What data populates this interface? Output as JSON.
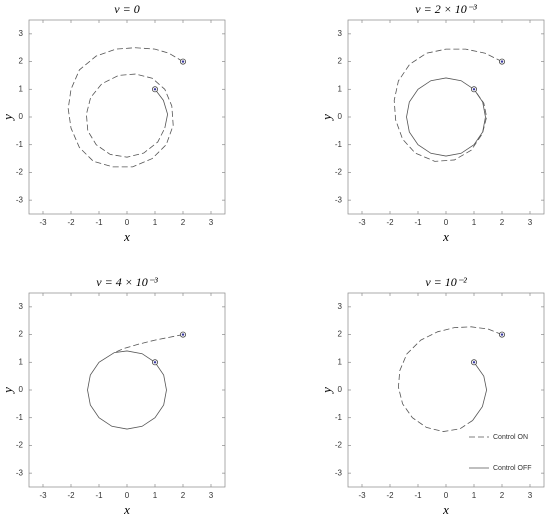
{
  "chart_data": [
    {
      "type": "line",
      "title": "ν = 0",
      "x_label": "x",
      "y_label": "y",
      "xlim": [
        -3.5,
        3.5
      ],
      "ylim": [
        -3.5,
        3.5
      ],
      "xticks": [
        -3,
        -2,
        -1,
        0,
        1,
        2,
        3
      ],
      "yticks": [
        -3,
        -2,
        -1,
        0,
        1,
        2,
        3
      ],
      "series": [
        {
          "name": "Control ON",
          "color": "#555555",
          "style": "dashed",
          "x": [
            2,
            1.5,
            1,
            0.3,
            -0.4,
            -1.1,
            -1.7,
            -2,
            -2.1,
            -2,
            -1.7,
            -1.2,
            -0.5,
            0.2,
            0.9,
            1.4,
            1.65,
            1.6,
            1.35,
            0.9,
            0.3,
            -0.3,
            -0.9,
            -1.3,
            -1.45,
            -1.4,
            -1.1,
            -0.6,
            0,
            0.6,
            1.1,
            1.35
          ],
          "values": [
            2,
            2.3,
            2.45,
            2.5,
            2.45,
            2.2,
            1.7,
            1,
            0.3,
            -0.4,
            -1.1,
            -1.6,
            -1.8,
            -1.8,
            -1.5,
            -1,
            -0.3,
            0.4,
            1,
            1.4,
            1.55,
            1.5,
            1.2,
            0.7,
            0.1,
            -0.5,
            -1,
            -1.35,
            -1.45,
            -1.3,
            -0.9,
            -0.4
          ]
        },
        {
          "name": "Control OFF",
          "color": "#555555",
          "style": "solid",
          "x": [
            1.35,
            1.45,
            1.3,
            1
          ],
          "values": [
            -0.4,
            0.1,
            0.6,
            1
          ]
        }
      ],
      "markers": {
        "x": [
          2,
          1
        ],
        "values": [
          2,
          1
        ],
        "color": "#3a3aa0"
      }
    },
    {
      "type": "line",
      "title": "ν = 2 × 10⁻³",
      "x_label": "x",
      "y_label": "y",
      "xlim": [
        -3.5,
        3.5
      ],
      "ylim": [
        -3.5,
        3.5
      ],
      "xticks": [
        -3,
        -2,
        -1,
        0,
        1,
        2,
        3
      ],
      "yticks": [
        -3,
        -2,
        -1,
        0,
        1,
        2,
        3
      ],
      "series": [
        {
          "name": "Control ON",
          "color": "#555555",
          "style": "dashed",
          "x": [
            2,
            1.4,
            0.7,
            0,
            -0.7,
            -1.3,
            -1.7,
            -1.85,
            -1.8,
            -1.55,
            -1.1,
            -0.4,
            0.3,
            0.9,
            1.3,
            1.45,
            1.35,
            1
          ],
          "values": [
            2,
            2.3,
            2.45,
            2.45,
            2.3,
            1.9,
            1.3,
            0.6,
            -0.1,
            -0.8,
            -1.3,
            -1.6,
            -1.55,
            -1.2,
            -0.6,
            0,
            0.5,
            1
          ]
        },
        {
          "name": "Control OFF",
          "color": "#555555",
          "style": "solid",
          "x": [
            1,
            0.54,
            0,
            -0.54,
            -1,
            -1.31,
            -1.41,
            -1.31,
            -1,
            -0.54,
            0,
            0.54,
            1,
            1.31,
            1.41,
            1.31,
            1
          ],
          "values": [
            1,
            1.31,
            1.41,
            1.31,
            1,
            0.54,
            0,
            -0.54,
            -1,
            -1.31,
            -1.41,
            -1.31,
            -1,
            -0.54,
            0,
            0.54,
            1
          ]
        }
      ],
      "markers": {
        "x": [
          2,
          1
        ],
        "values": [
          2,
          1
        ],
        "color": "#3a3aa0"
      }
    },
    {
      "type": "line",
      "title": "ν = 4 × 10⁻³",
      "x_label": "x",
      "y_label": "y",
      "xlim": [
        -3.5,
        3.5
      ],
      "ylim": [
        -3.5,
        3.5
      ],
      "xticks": [
        -3,
        -2,
        -1,
        0,
        1,
        2,
        3
      ],
      "yticks": [
        -3,
        -2,
        -1,
        0,
        1,
        2,
        3
      ],
      "series": [
        {
          "name": "Control ON",
          "color": "#555555",
          "style": "dashed",
          "x": [
            2,
            1.5,
            1,
            0.4,
            -0.1,
            -0.45
          ],
          "values": [
            2,
            1.9,
            1.8,
            1.65,
            1.5,
            1.35
          ]
        },
        {
          "name": "Control OFF",
          "color": "#555555",
          "style": "solid",
          "x": [
            -0.45,
            -1,
            -1.31,
            -1.41,
            -1.31,
            -1,
            -0.54,
            0,
            0.54,
            1,
            1.31,
            1.41,
            1.31,
            1,
            0.54,
            0,
            -0.45
          ],
          "values": [
            1.35,
            1,
            0.54,
            0,
            -0.54,
            -1,
            -1.31,
            -1.41,
            -1.31,
            -1,
            -0.54,
            0,
            0.54,
            1,
            1.31,
            1.41,
            1.35
          ]
        }
      ],
      "markers": {
        "x": [
          2,
          1
        ],
        "values": [
          2,
          1
        ],
        "color": "#3a3aa0"
      }
    },
    {
      "type": "line",
      "title": "ν = 10⁻²",
      "x_label": "x",
      "y_label": "y",
      "xlim": [
        -3.5,
        3.5
      ],
      "ylim": [
        -3.5,
        3.5
      ],
      "xticks": [
        -3,
        -2,
        -1,
        0,
        1,
        2,
        3
      ],
      "yticks": [
        -3,
        -2,
        -1,
        0,
        1,
        2,
        3
      ],
      "legend": "lower right",
      "series": [
        {
          "name": "Control ON",
          "color": "#555555",
          "style": "dashed",
          "x": [
            2,
            1.5,
            0.9,
            0.3,
            -0.3,
            -0.9,
            -1.4,
            -1.65,
            -1.7,
            -1.55,
            -1.2,
            -0.7,
            -0.1,
            0.5,
            0.95
          ],
          "values": [
            2,
            2.2,
            2.28,
            2.25,
            2.1,
            1.8,
            1.3,
            0.7,
            0.1,
            -0.5,
            -1,
            -1.35,
            -1.5,
            -1.4,
            -1.1
          ]
        },
        {
          "name": "Control OFF",
          "color": "#555555",
          "style": "solid",
          "x": [
            0.95,
            1.3,
            1.45,
            1.35,
            1
          ],
          "values": [
            -1.1,
            -0.6,
            0,
            0.5,
            1
          ]
        }
      ],
      "markers": {
        "x": [
          2,
          1
        ],
        "values": [
          2,
          1
        ],
        "color": "#3a3aa0"
      }
    }
  ]
}
